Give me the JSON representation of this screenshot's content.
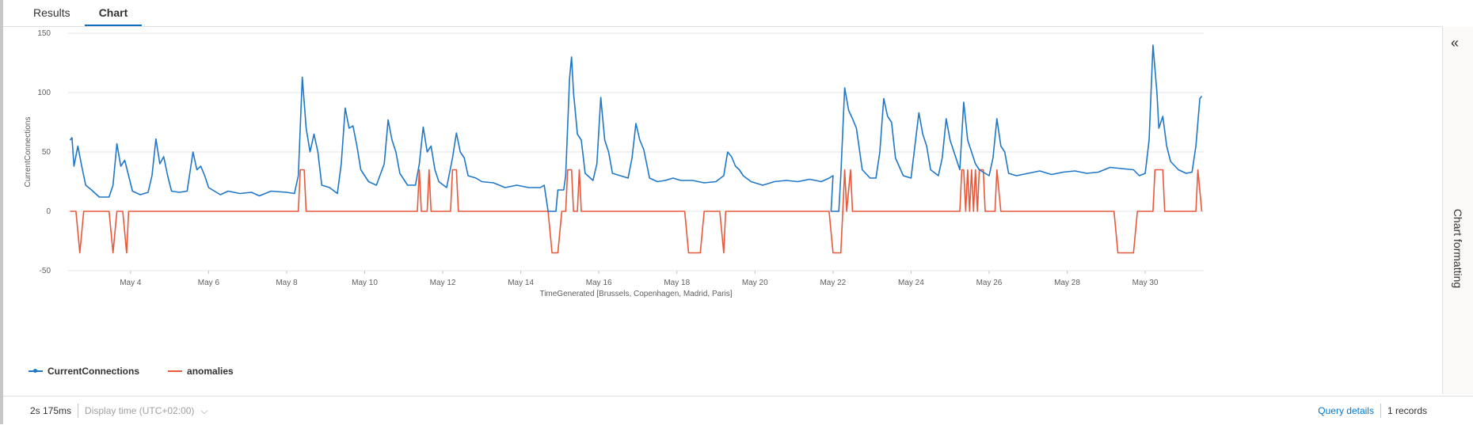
{
  "tabs": [
    {
      "label": "Results"
    },
    {
      "label": "Chart"
    }
  ],
  "panel": {
    "title": "Chart formatting"
  },
  "footer": {
    "exec_time": "2s 175ms",
    "display_time": "Display time (UTC+02:00)",
    "query_details": "Query details",
    "records": "1 records"
  },
  "chart_data": {
    "type": "line",
    "xlabel": "TimeGenerated [Brussels, Copenhagen, Madrid, Paris]",
    "ylabel": "CurrentConnections",
    "ylim": [
      -50,
      150
    ],
    "yticks": [
      150,
      100,
      50,
      0,
      -50
    ],
    "xticks": [
      "May 4",
      "May 6",
      "May 8",
      "May 10",
      "May 12",
      "May 14",
      "May 16",
      "May 18",
      "May 20",
      "May 22",
      "May 24",
      "May 26",
      "May 28",
      "May 30"
    ],
    "xticks_day": [
      4,
      6,
      8,
      10,
      12,
      14,
      16,
      18,
      20,
      22,
      24,
      26,
      28,
      30
    ],
    "xlim_day": [
      2.4,
      31.5
    ],
    "grid": true,
    "legend_position": "bottom-left",
    "series": [
      {
        "name": "CurrentConnections",
        "color": "#1f77c8",
        "points": [
          [
            2.45,
            60
          ],
          [
            2.5,
            62
          ],
          [
            2.55,
            38
          ],
          [
            2.65,
            55
          ],
          [
            2.75,
            38
          ],
          [
            2.85,
            22
          ],
          [
            3.0,
            18
          ],
          [
            3.2,
            12
          ],
          [
            3.45,
            12
          ],
          [
            3.55,
            22
          ],
          [
            3.65,
            57
          ],
          [
            3.75,
            38
          ],
          [
            3.85,
            43
          ],
          [
            3.95,
            30
          ],
          [
            4.05,
            17
          ],
          [
            4.25,
            14
          ],
          [
            4.45,
            16
          ],
          [
            4.55,
            30
          ],
          [
            4.65,
            61
          ],
          [
            4.75,
            40
          ],
          [
            4.85,
            46
          ],
          [
            4.95,
            30
          ],
          [
            5.05,
            17
          ],
          [
            5.25,
            16
          ],
          [
            5.45,
            17
          ],
          [
            5.6,
            50
          ],
          [
            5.7,
            35
          ],
          [
            5.8,
            38
          ],
          [
            5.9,
            30
          ],
          [
            6.0,
            20
          ],
          [
            6.3,
            14
          ],
          [
            6.5,
            17
          ],
          [
            6.8,
            15
          ],
          [
            7.1,
            16
          ],
          [
            7.3,
            13
          ],
          [
            7.6,
            17
          ],
          [
            8.0,
            16
          ],
          [
            8.2,
            15
          ],
          [
            8.3,
            30
          ],
          [
            8.4,
            113
          ],
          [
            8.5,
            70
          ],
          [
            8.6,
            50
          ],
          [
            8.7,
            65
          ],
          [
            8.8,
            50
          ],
          [
            8.9,
            22
          ],
          [
            9.1,
            20
          ],
          [
            9.3,
            15
          ],
          [
            9.4,
            40
          ],
          [
            9.5,
            87
          ],
          [
            9.6,
            70
          ],
          [
            9.7,
            72
          ],
          [
            9.8,
            55
          ],
          [
            9.9,
            35
          ],
          [
            10.1,
            25
          ],
          [
            10.3,
            22
          ],
          [
            10.5,
            40
          ],
          [
            10.6,
            77
          ],
          [
            10.7,
            60
          ],
          [
            10.8,
            50
          ],
          [
            10.9,
            32
          ],
          [
            11.1,
            22
          ],
          [
            11.3,
            22
          ],
          [
            11.4,
            40
          ],
          [
            11.5,
            71
          ],
          [
            11.6,
            50
          ],
          [
            11.7,
            55
          ],
          [
            11.8,
            35
          ],
          [
            11.9,
            25
          ],
          [
            12.1,
            20
          ],
          [
            12.25,
            45
          ],
          [
            12.35,
            66
          ],
          [
            12.45,
            50
          ],
          [
            12.55,
            45
          ],
          [
            12.65,
            30
          ],
          [
            12.85,
            28
          ],
          [
            13.0,
            25
          ],
          [
            13.3,
            24
          ],
          [
            13.6,
            20
          ],
          [
            13.9,
            22
          ],
          [
            14.2,
            20
          ],
          [
            14.5,
            20
          ],
          [
            14.6,
            22
          ],
          [
            14.7,
            0
          ],
          [
            14.9,
            0
          ],
          [
            14.95,
            18
          ],
          [
            15.1,
            18
          ],
          [
            15.15,
            30
          ],
          [
            15.25,
            112
          ],
          [
            15.3,
            130
          ],
          [
            15.35,
            100
          ],
          [
            15.45,
            65
          ],
          [
            15.55,
            60
          ],
          [
            15.65,
            32
          ],
          [
            15.85,
            26
          ],
          [
            15.95,
            40
          ],
          [
            16.05,
            96
          ],
          [
            16.15,
            60
          ],
          [
            16.25,
            50
          ],
          [
            16.35,
            32
          ],
          [
            16.55,
            30
          ],
          [
            16.75,
            28
          ],
          [
            16.85,
            45
          ],
          [
            16.95,
            74
          ],
          [
            17.05,
            60
          ],
          [
            17.15,
            52
          ],
          [
            17.3,
            28
          ],
          [
            17.5,
            25
          ],
          [
            17.7,
            26
          ],
          [
            17.9,
            28
          ],
          [
            18.1,
            26
          ],
          [
            18.4,
            26
          ],
          [
            18.7,
            24
          ],
          [
            19.0,
            25
          ],
          [
            19.2,
            30
          ],
          [
            19.3,
            50
          ],
          [
            19.4,
            46
          ],
          [
            19.5,
            38
          ],
          [
            19.6,
            35
          ],
          [
            19.7,
            30
          ],
          [
            19.9,
            25
          ],
          [
            20.2,
            22
          ],
          [
            20.5,
            25
          ],
          [
            20.8,
            26
          ],
          [
            21.1,
            25
          ],
          [
            21.4,
            27
          ],
          [
            21.7,
            25
          ],
          [
            21.9,
            28
          ],
          [
            22.0,
            30
          ],
          [
            21.95,
            0
          ],
          [
            22.15,
            0
          ],
          [
            22.2,
            30
          ],
          [
            22.3,
            104
          ],
          [
            22.4,
            85
          ],
          [
            22.5,
            78
          ],
          [
            22.6,
            70
          ],
          [
            22.75,
            35
          ],
          [
            22.95,
            28
          ],
          [
            23.1,
            28
          ],
          [
            23.2,
            50
          ],
          [
            23.3,
            95
          ],
          [
            23.4,
            80
          ],
          [
            23.5,
            75
          ],
          [
            23.6,
            45
          ],
          [
            23.8,
            30
          ],
          [
            24.0,
            28
          ],
          [
            24.2,
            83
          ],
          [
            24.3,
            65
          ],
          [
            24.4,
            55
          ],
          [
            24.5,
            35
          ],
          [
            24.7,
            30
          ],
          [
            24.8,
            45
          ],
          [
            24.9,
            78
          ],
          [
            25.0,
            60
          ],
          [
            25.1,
            50
          ],
          [
            25.25,
            35
          ],
          [
            25.35,
            92
          ],
          [
            25.45,
            60
          ],
          [
            25.55,
            50
          ],
          [
            25.65,
            40
          ],
          [
            25.75,
            35
          ],
          [
            25.9,
            32
          ],
          [
            26.0,
            30
          ],
          [
            26.1,
            45
          ],
          [
            26.2,
            78
          ],
          [
            26.3,
            55
          ],
          [
            26.4,
            50
          ],
          [
            26.5,
            32
          ],
          [
            26.7,
            30
          ],
          [
            27.0,
            32
          ],
          [
            27.3,
            34
          ],
          [
            27.6,
            31
          ],
          [
            27.9,
            33
          ],
          [
            28.2,
            34
          ],
          [
            28.5,
            32
          ],
          [
            28.8,
            33
          ],
          [
            29.1,
            37
          ],
          [
            29.4,
            36
          ],
          [
            29.7,
            35
          ],
          [
            29.85,
            30
          ],
          [
            30.0,
            32
          ],
          [
            30.1,
            60
          ],
          [
            30.2,
            140
          ],
          [
            30.3,
            100
          ],
          [
            30.35,
            70
          ],
          [
            30.45,
            80
          ],
          [
            30.55,
            55
          ],
          [
            30.65,
            42
          ],
          [
            30.85,
            35
          ],
          [
            31.05,
            32
          ],
          [
            31.2,
            33
          ],
          [
            31.3,
            55
          ],
          [
            31.4,
            95
          ],
          [
            31.45,
            97
          ]
        ]
      },
      {
        "name": "anomalies",
        "color": "#e8593c",
        "points": [
          [
            2.45,
            0
          ],
          [
            2.6,
            0
          ],
          [
            2.7,
            -35
          ],
          [
            2.8,
            0
          ],
          [
            3.45,
            0
          ],
          [
            3.55,
            -35
          ],
          [
            3.65,
            0
          ],
          [
            3.8,
            0
          ],
          [
            3.9,
            -35
          ],
          [
            3.95,
            0
          ],
          [
            8.3,
            0
          ],
          [
            8.35,
            35
          ],
          [
            8.45,
            35
          ],
          [
            8.5,
            0
          ],
          [
            11.35,
            0
          ],
          [
            11.4,
            35
          ],
          [
            11.45,
            0
          ],
          [
            11.6,
            0
          ],
          [
            11.65,
            35
          ],
          [
            11.7,
            0
          ],
          [
            12.2,
            0
          ],
          [
            12.25,
            35
          ],
          [
            12.35,
            35
          ],
          [
            12.4,
            0
          ],
          [
            14.7,
            0
          ],
          [
            14.8,
            -35
          ],
          [
            14.95,
            -35
          ],
          [
            15.05,
            0
          ],
          [
            15.15,
            0
          ],
          [
            15.2,
            35
          ],
          [
            15.3,
            35
          ],
          [
            15.35,
            0
          ],
          [
            15.45,
            0
          ],
          [
            15.5,
            35
          ],
          [
            15.55,
            0
          ],
          [
            18.2,
            0
          ],
          [
            18.3,
            -35
          ],
          [
            18.6,
            -35
          ],
          [
            18.7,
            0
          ],
          [
            19.1,
            0
          ],
          [
            19.2,
            -35
          ],
          [
            19.25,
            0
          ],
          [
            21.9,
            0
          ],
          [
            22.0,
            -35
          ],
          [
            22.2,
            -35
          ],
          [
            22.25,
            0
          ],
          [
            22.3,
            35
          ],
          [
            22.35,
            0
          ],
          [
            22.45,
            35
          ],
          [
            22.5,
            0
          ],
          [
            25.25,
            0
          ],
          [
            25.3,
            35
          ],
          [
            25.35,
            35
          ],
          [
            25.4,
            0
          ],
          [
            25.45,
            35
          ],
          [
            25.5,
            0
          ],
          [
            25.55,
            35
          ],
          [
            25.6,
            0
          ],
          [
            25.65,
            35
          ],
          [
            25.7,
            0
          ],
          [
            25.75,
            35
          ],
          [
            25.85,
            35
          ],
          [
            25.9,
            0
          ],
          [
            26.15,
            0
          ],
          [
            26.2,
            35
          ],
          [
            26.3,
            0
          ],
          [
            29.2,
            0
          ],
          [
            29.3,
            -35
          ],
          [
            29.7,
            -35
          ],
          [
            29.8,
            0
          ],
          [
            30.2,
            0
          ],
          [
            30.25,
            35
          ],
          [
            30.45,
            35
          ],
          [
            30.5,
            0
          ],
          [
            31.3,
            0
          ],
          [
            31.35,
            35
          ],
          [
            31.45,
            0
          ]
        ]
      }
    ]
  }
}
